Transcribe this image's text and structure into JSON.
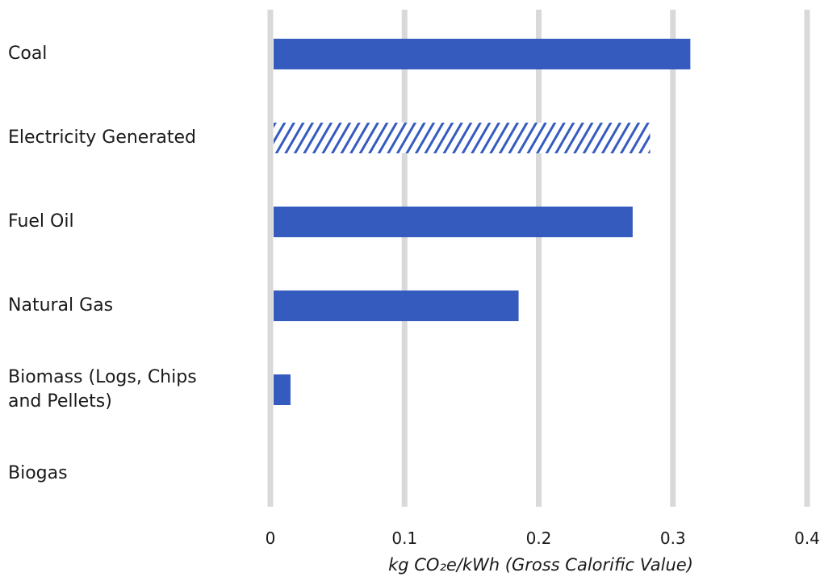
{
  "chart_data": {
    "type": "bar",
    "orientation": "horizontal",
    "categories": [
      "Coal",
      "Electricity Generated",
      "Fuel Oil",
      "Natural Gas",
      "Biomass (Logs, Chips\nand Pellets)",
      "Biogas"
    ],
    "values": [
      0.313,
      0.283,
      0.27,
      0.185,
      0.015,
      0
    ],
    "bar_styles": [
      "solid",
      "hatched",
      "solid",
      "solid",
      "solid",
      "solid"
    ],
    "xlabel": "kg CO₂e/kWh (Gross Calorific Value)",
    "ylabel": "",
    "xlim": [
      0,
      0.4
    ],
    "xticks": [
      "0",
      "0.1",
      "0.2",
      "0.3",
      "0.4"
    ],
    "grid": true,
    "bar_color": "#355bbf",
    "grid_color": "#d9d9d9"
  }
}
